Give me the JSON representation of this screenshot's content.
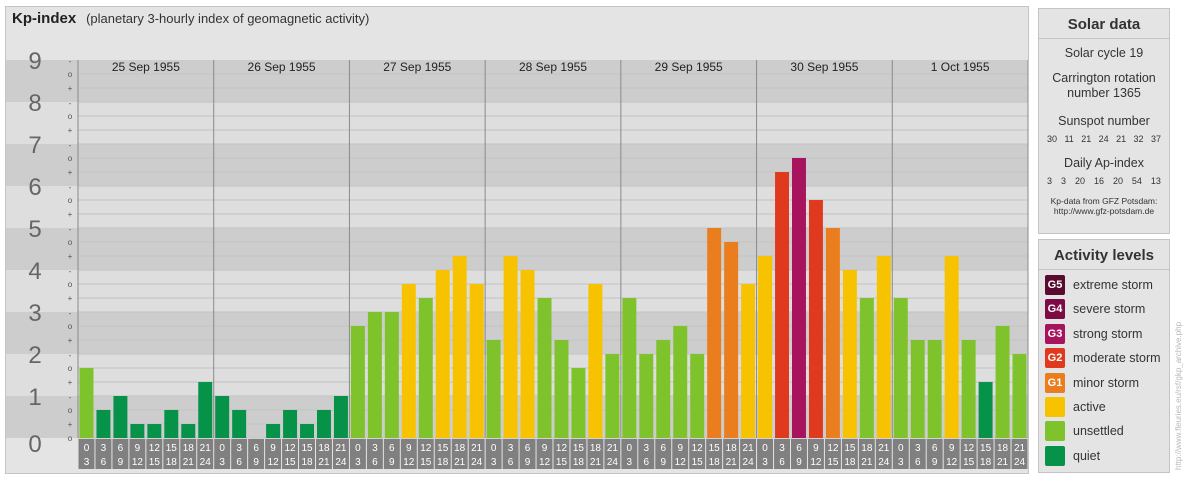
{
  "header": {
    "title": "Kp-index",
    "subtitle": "(planetary 3-hourly index of geomagnetic activity)"
  },
  "chart_data": {
    "type": "bar",
    "ylim": [
      0,
      9
    ],
    "y_ticks": [
      "0",
      "1",
      "2",
      "3",
      "4",
      "5",
      "6",
      "7",
      "8",
      "9"
    ],
    "minor_tick_labels": [
      "+",
      "o",
      "-"
    ],
    "days": [
      "25 Sep 1955",
      "26 Sep 1955",
      "27 Sep 1955",
      "28 Sep 1955",
      "29 Sep 1955",
      "30 Sep 1955",
      "1 Oct 1955"
    ],
    "interval_labels": [
      [
        "0",
        "3"
      ],
      [
        "3",
        "6"
      ],
      [
        "6",
        "9"
      ],
      [
        "9",
        "12"
      ],
      [
        "12",
        "15"
      ],
      [
        "15",
        "18"
      ],
      [
        "18",
        "21"
      ],
      [
        "21",
        "24"
      ]
    ],
    "values": [
      [
        1.667,
        0.667,
        1.0,
        0.333,
        0.333,
        0.667,
        0.333,
        1.333
      ],
      [
        1.0,
        0.667,
        0.0,
        0.333,
        0.667,
        0.333,
        0.667,
        1.0
      ],
      [
        2.667,
        3.0,
        3.0,
        3.667,
        3.333,
        4.0,
        4.333,
        3.667
      ],
      [
        2.333,
        4.333,
        4.0,
        3.333,
        2.333,
        1.667,
        3.667,
        2.0
      ],
      [
        3.333,
        2.0,
        2.333,
        2.667,
        2.0,
        5.0,
        4.667,
        3.667
      ],
      [
        4.333,
        6.333,
        6.667,
        5.667,
        5.0,
        4.0,
        3.333,
        4.333
      ],
      [
        3.333,
        2.333,
        2.333,
        4.333,
        2.333,
        1.333,
        2.667,
        2.0
      ]
    ]
  },
  "solar": {
    "title": "Solar data",
    "cycle": "Solar cycle 19",
    "carrington_line1": "Carrington rotation",
    "carrington_line2": "number 1365",
    "sunspot_label": "Sunspot number",
    "sunspot_values": [
      "30",
      "11",
      "21",
      "24",
      "21",
      "32",
      "37"
    ],
    "ap_label": "Daily Ap-index",
    "ap_values": [
      "3",
      "3",
      "20",
      "16",
      "20",
      "54",
      "13"
    ],
    "source_line1": "Kp-data from GFZ Potsdam:",
    "source_line2": "http://www.gfz-potsdam.de"
  },
  "activity": {
    "title": "Activity levels",
    "levels": [
      {
        "code": "G5",
        "label": "extreme storm",
        "color": "#5a0a2e"
      },
      {
        "code": "G4",
        "label": "severe storm",
        "color": "#7e0a45"
      },
      {
        "code": "G3",
        "label": "strong storm",
        "color": "#a8135e"
      },
      {
        "code": "G2",
        "label": "moderate storm",
        "color": "#e03a1e"
      },
      {
        "code": "G1",
        "label": "minor storm",
        "color": "#ea7d1e"
      },
      {
        "code": "",
        "label": "active",
        "color": "#f7c300"
      },
      {
        "code": "",
        "label": "unsettled",
        "color": "#7ec22c"
      },
      {
        "code": "",
        "label": "quiet",
        "color": "#07924a"
      }
    ]
  },
  "credit": "http://www.fleuries.eu/rsf/gkp_archive.php"
}
